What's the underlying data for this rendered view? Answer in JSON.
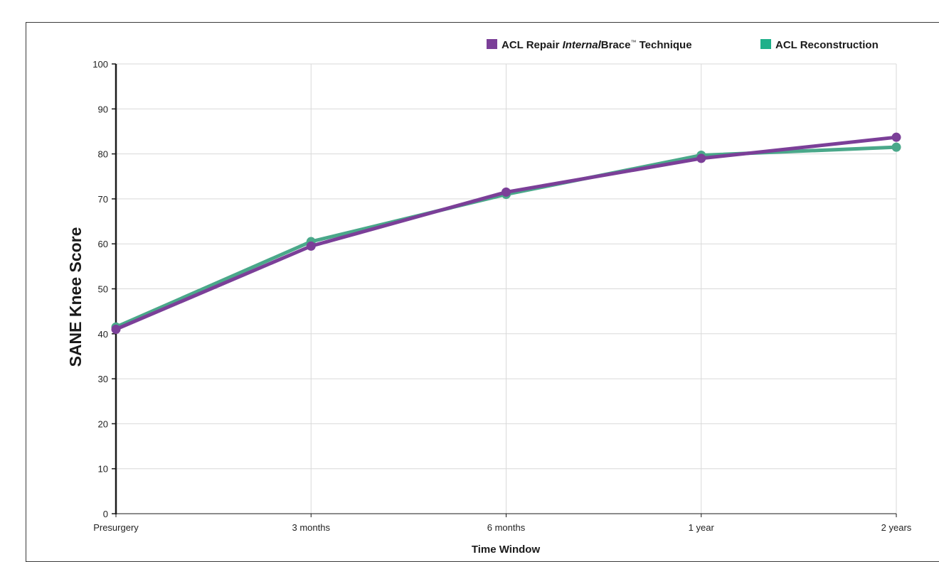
{
  "chart_data": {
    "type": "line",
    "title": "",
    "xlabel": "Time Window",
    "ylabel": "SANE Knee Score",
    "categories": [
      "Presurgery",
      "3 months",
      "6 months",
      "1 year",
      "2 years"
    ],
    "ylim": [
      0,
      100
    ],
    "yticks": [
      "0",
      "10",
      "20",
      "30",
      "40",
      "50",
      "60",
      "70",
      "80",
      "90",
      "100"
    ],
    "grid": true,
    "legend_position": "top-right",
    "series": [
      {
        "name": "ACL Repair InternalBrace™ Technique",
        "name_parts": [
          "ACL Repair ",
          "Internal",
          "Brace",
          "™",
          " Technique"
        ],
        "color": "#7b3f98",
        "values": [
          41,
          59.5,
          71.5,
          79,
          83.7
        ]
      },
      {
        "name": "ACL Reconstruction",
        "color": "#4aa88a",
        "legend_color": "#1eb08a",
        "values": [
          41.5,
          60.5,
          71,
          79.7,
          81.5
        ]
      }
    ]
  }
}
